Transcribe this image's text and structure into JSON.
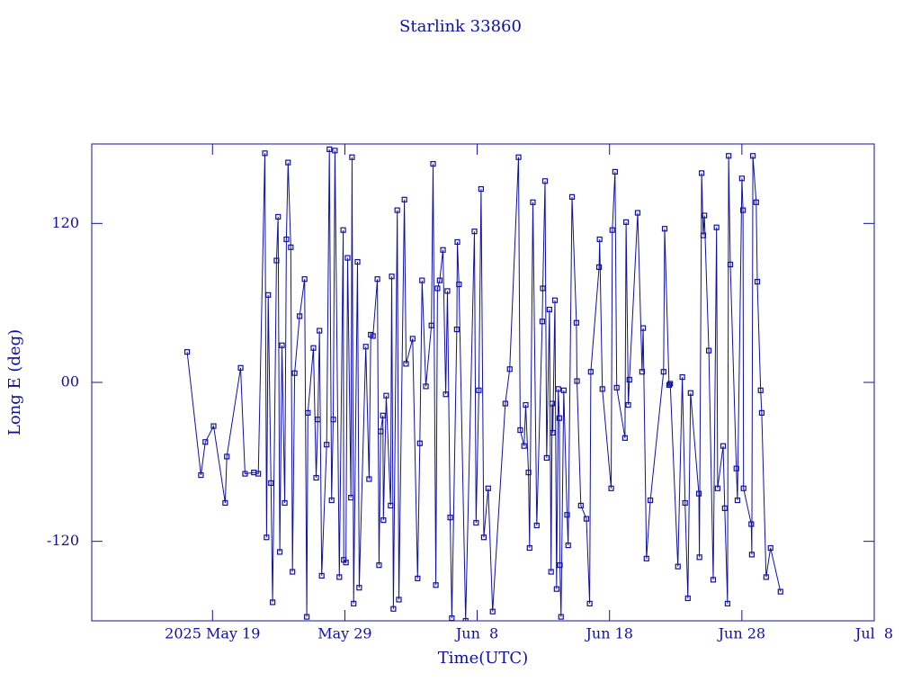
{
  "chart_data": {
    "type": "line",
    "title": "Starlink 33860",
    "xlabel": "Time(UTC)",
    "ylabel": "Long E (deg)",
    "xlim": [
      "2025-05-09T21:00",
      "2025-07-08T00:00"
    ],
    "xticks": [
      {
        "value": "2025-05-19T00:00",
        "label": "2025 May 19"
      },
      {
        "value": "2025-05-29T00:00",
        "label": "May 29"
      },
      {
        "value": "2025-06-08T00:00",
        "label": "Jun  8"
      },
      {
        "value": "2025-06-18T00:00",
        "label": "Jun 18"
      },
      {
        "value": "2025-06-28T00:00",
        "label": "Jun 28"
      },
      {
        "value": "2025-07-08T00:00",
        "label": "Jul  8"
      }
    ],
    "ylim": [
      -180,
      180
    ],
    "yticks": [
      -120,
      {
        "value": 0,
        "label": "00"
      },
      120
    ],
    "x": [
      "2025-05-17T02:00",
      "2025-05-18T03:00",
      "2025-05-18T11:00",
      "2025-05-19T02:00",
      "2025-05-19T23:00",
      "2025-05-20T02:00",
      "2025-05-21T03:00",
      "2025-05-21T11:00",
      "2025-05-22T03:00",
      "2025-05-22T11:00",
      "2025-05-22T23:00",
      "2025-05-23T02:00",
      "2025-05-23T05:00",
      "2025-05-23T10:00",
      "2025-05-23T13:00",
      "2025-05-23T20:00",
      "2025-05-23T23:00",
      "2025-05-24T02:00",
      "2025-05-24T06:00",
      "2025-05-24T11:00",
      "2025-05-24T14:00",
      "2025-05-24T17:00",
      "2025-05-24T22:00",
      "2025-05-25T01:00",
      "2025-05-25T05:00",
      "2025-05-25T14:00",
      "2025-05-25T23:00",
      "2025-05-26T03:00",
      "2025-05-26T05:00",
      "2025-05-26T15:00",
      "2025-05-26T20:00",
      "2025-05-26T23:00",
      "2025-05-27T02:00",
      "2025-05-27T06:00",
      "2025-05-27T15:00",
      "2025-05-27T20:00",
      "2025-05-28T00:00",
      "2025-05-28T03:00",
      "2025-05-28T06:00",
      "2025-05-28T14:00",
      "2025-05-28T21:00",
      "2025-05-28T22:00",
      "2025-05-29T02:00",
      "2025-05-29T05:00",
      "2025-05-29T11:00",
      "2025-05-29T13:00",
      "2025-05-29T16:00",
      "2025-05-29T23:00",
      "2025-05-30T02:00",
      "2025-05-30T14:00",
      "2025-05-30T20:00",
      "2025-05-30T23:00",
      "2025-05-31T03:00",
      "2025-05-31T11:00",
      "2025-05-31T14:00",
      "2025-05-31T17:00",
      "2025-05-31T21:00",
      "2025-05-31T22:00",
      "2025-06-01T03:00",
      "2025-06-01T11:00",
      "2025-06-01T13:00",
      "2025-06-01T16:00",
      "2025-06-01T23:00",
      "2025-06-02T02:00",
      "2025-06-02T12:00",
      "2025-06-02T15:00",
      "2025-06-03T03:00",
      "2025-06-03T12:00",
      "2025-06-03T16:00",
      "2025-06-03T20:00",
      "2025-06-04T03:00",
      "2025-06-04T13:00",
      "2025-06-04T16:00",
      "2025-06-04T21:00",
      "2025-06-05T00:00",
      "2025-06-05T04:00",
      "2025-06-05T10:00",
      "2025-06-05T15:00",
      "2025-06-05T18:00",
      "2025-06-05T23:00",
      "2025-06-06T02:00",
      "2025-06-06T11:00",
      "2025-06-06T12:00",
      "2025-06-06T15:00",
      "2025-06-07T03:00",
      "2025-06-07T19:00",
      "2025-06-07T22:00",
      "2025-06-08T03:00",
      "2025-06-08T07:00",
      "2025-06-08T12:00",
      "2025-06-08T20:00",
      "2025-06-09T04:00",
      "2025-06-10T03:00",
      "2025-06-10T11:00",
      "2025-06-11T03:00",
      "2025-06-11T06:00",
      "2025-06-11T13:00",
      "2025-06-11T16:00",
      "2025-06-11T21:00",
      "2025-06-11T23:00",
      "2025-06-12T05:00",
      "2025-06-12T12:00",
      "2025-06-12T22:00",
      "2025-06-12T23:00",
      "2025-06-13T03:00",
      "2025-06-13T06:00",
      "2025-06-13T11:00",
      "2025-06-13T14:00",
      "2025-06-13T16:00",
      "2025-06-13T17:00",
      "2025-06-13T21:00",
      "2025-06-14T00:00",
      "2025-06-14T03:00",
      "2025-06-14T05:00",
      "2025-06-14T06:00",
      "2025-06-14T08:00",
      "2025-06-14T13:00",
      "2025-06-14T19:00",
      "2025-06-14T21:00",
      "2025-06-15T04:00",
      "2025-06-15T12:00",
      "2025-06-15T13:00",
      "2025-06-15T20:00",
      "2025-06-16T06:00",
      "2025-06-16T12:00",
      "2025-06-16T14:00",
      "2025-06-17T05:00",
      "2025-06-17T06:00",
      "2025-06-17T11:00",
      "2025-06-18T03:00",
      "2025-06-18T05:00",
      "2025-06-18T10:00",
      "2025-06-18T13:00",
      "2025-06-19T04:00",
      "2025-06-19T06:00",
      "2025-06-19T10:00",
      "2025-06-19T12:00",
      "2025-06-20T03:00",
      "2025-06-20T11:00",
      "2025-06-20T13:00",
      "2025-06-20T19:00",
      "2025-06-21T02:00",
      "2025-06-22T02:00",
      "2025-06-22T04:00",
      "2025-06-22T12:00",
      "2025-06-22T14:00",
      "2025-06-23T04:00",
      "2025-06-23T12:00",
      "2025-06-23T17:00",
      "2025-06-23T22:00",
      "2025-06-24T03:00",
      "2025-06-24T18:00",
      "2025-06-24T19:00",
      "2025-06-24T23:00",
      "2025-06-25T02:00",
      "2025-06-25T04:00",
      "2025-06-25T12:00",
      "2025-06-25T20:00",
      "2025-06-26T02:00",
      "2025-06-26T04:00",
      "2025-06-26T14:00",
      "2025-06-26T17:00",
      "2025-06-26T22:00",
      "2025-06-27T00:00",
      "2025-06-27T03:00",
      "2025-06-27T14:00",
      "2025-06-27T16:00",
      "2025-06-28T00:00",
      "2025-06-28T02:00",
      "2025-06-28T03:00",
      "2025-06-28T17:00",
      "2025-06-28T18:00",
      "2025-06-28T20:00",
      "2025-06-29T02:00",
      "2025-06-29T04:00",
      "2025-06-29T10:00",
      "2025-06-29T12:00",
      "2025-06-29T20:00",
      "2025-06-30T04:00",
      "2025-06-30T22:00"
    ],
    "series": [
      {
        "color": "#1010a0",
        "values": [
          23,
          -70,
          -45,
          -33,
          -91,
          -56,
          11,
          -69,
          -68,
          -69,
          173,
          -117,
          66,
          -76,
          -166,
          92,
          125,
          -128,
          28,
          -91,
          108,
          166,
          102,
          -143,
          7,
          50,
          78,
          -177,
          -23,
          26,
          -72,
          -28,
          39,
          -146,
          -47,
          176,
          -89,
          -28,
          175,
          -147,
          115,
          -134,
          -136,
          94,
          -87,
          170,
          -167,
          91,
          -155,
          27,
          -73,
          36,
          35,
          78,
          -138,
          -37,
          -25,
          -104,
          -10,
          -93,
          80,
          -171,
          130,
          -164,
          138,
          14,
          33,
          -148,
          -46,
          77,
          -3,
          43,
          165,
          -153,
          71,
          77,
          100,
          -9,
          69,
          -102,
          -178,
          40,
          106,
          74,
          -180,
          114,
          -106,
          -6,
          146,
          -117,
          -80,
          -173,
          -16,
          10,
          170,
          -36,
          -48,
          -17,
          -68,
          -125,
          136,
          -108,
          46,
          71,
          152,
          -57,
          55,
          -143,
          -16,
          -38,
          62,
          -156,
          -5,
          -27,
          -138,
          -177,
          -6,
          -100,
          -123,
          140,
          45,
          1,
          -93,
          -103,
          -167,
          8,
          87,
          108,
          -5,
          -80,
          115,
          159,
          -4,
          -42,
          121,
          -17,
          2,
          128,
          8,
          41,
          -133,
          -89,
          8,
          116,
          -2,
          -1,
          -139,
          4,
          -91,
          -163,
          -8,
          -84,
          -132,
          158,
          111,
          126,
          24,
          -149,
          117,
          -80,
          -48,
          -95,
          -167,
          171,
          89,
          -65,
          -89,
          154,
          130,
          -80,
          -107,
          -130,
          171,
          136,
          76,
          -6,
          -23,
          -147,
          -125,
          -158
        ]
      }
    ]
  }
}
